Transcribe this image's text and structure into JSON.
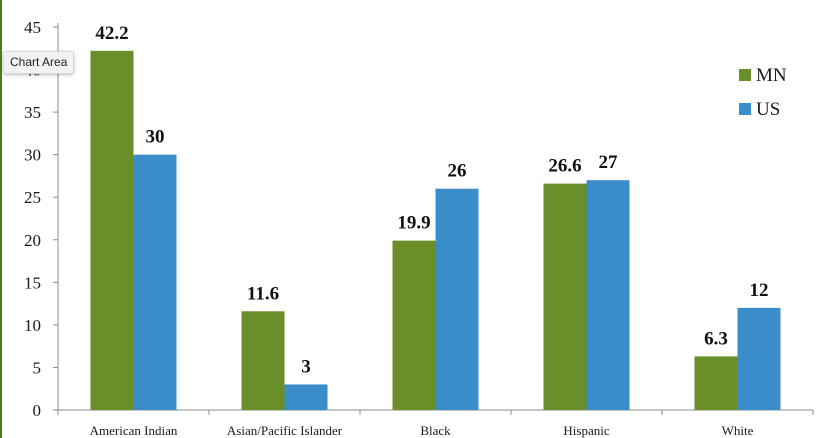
{
  "tooltip": {
    "text": "Chart Area"
  },
  "colors": {
    "MN": "#6a8e2a",
    "US": "#3a8dc8",
    "axis": "#8c8c8c",
    "edge": "#4e7a22"
  },
  "chart_data": {
    "type": "bar",
    "categories": [
      "American Indian",
      "Asian/Pacific Islander",
      "Black",
      "Hispanic",
      "White"
    ],
    "series": [
      {
        "name": "MN",
        "values": [
          42.2,
          11.6,
          19.9,
          26.6,
          6.3
        ]
      },
      {
        "name": "US",
        "values": [
          30,
          3,
          26,
          27,
          12
        ]
      }
    ],
    "title": "",
    "xlabel": "",
    "ylabel": "",
    "ylim": [
      0,
      45
    ],
    "yticks": [
      0,
      5,
      10,
      15,
      20,
      25,
      30,
      35,
      40,
      45
    ],
    "grid": false,
    "legend": "top-right",
    "data_labels": true
  }
}
